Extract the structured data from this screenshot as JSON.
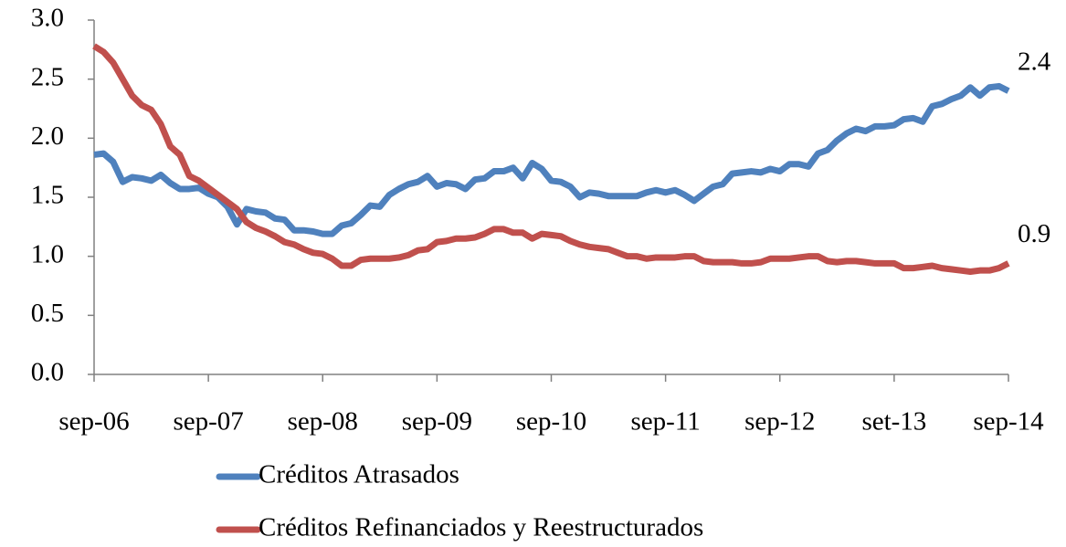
{
  "chart_data": {
    "type": "line",
    "categories": [
      "sep-06",
      null,
      null,
      null,
      null,
      null,
      null,
      null,
      null,
      null,
      null,
      null,
      "sep-07",
      null,
      null,
      null,
      null,
      null,
      null,
      null,
      null,
      null,
      null,
      null,
      "sep-08",
      null,
      null,
      null,
      null,
      null,
      null,
      null,
      null,
      null,
      null,
      null,
      "sep-09",
      null,
      null,
      null,
      null,
      null,
      null,
      null,
      null,
      null,
      null,
      null,
      "sep-10",
      null,
      null,
      null,
      null,
      null,
      null,
      null,
      null,
      null,
      null,
      null,
      "sep-11",
      null,
      null,
      null,
      null,
      null,
      null,
      null,
      null,
      null,
      null,
      null,
      "sep-12",
      null,
      null,
      null,
      null,
      null,
      null,
      null,
      null,
      null,
      null,
      null,
      "set-13",
      null,
      null,
      null,
      null,
      null,
      null,
      null,
      null,
      null,
      null,
      null,
      "sep-14"
    ],
    "series": [
      {
        "name": "Créditos Atrasados",
        "color": "#4f81bd",
        "end_label": "2.4",
        "values": [
          1.86,
          1.87,
          1.8,
          1.63,
          1.67,
          1.66,
          1.64,
          1.69,
          1.62,
          1.57,
          1.57,
          1.58,
          1.53,
          1.5,
          1.42,
          1.27,
          1.4,
          1.38,
          1.37,
          1.32,
          1.31,
          1.22,
          1.22,
          1.21,
          1.19,
          1.19,
          1.26,
          1.28,
          1.35,
          1.43,
          1.42,
          1.52,
          1.57,
          1.61,
          1.63,
          1.68,
          1.59,
          1.62,
          1.61,
          1.57,
          1.65,
          1.66,
          1.72,
          1.72,
          1.75,
          1.66,
          1.79,
          1.74,
          1.64,
          1.63,
          1.59,
          1.5,
          1.54,
          1.53,
          1.51,
          1.51,
          1.51,
          1.51,
          1.54,
          1.56,
          1.54,
          1.56,
          1.52,
          1.47,
          1.53,
          1.59,
          1.61,
          1.7,
          1.71,
          1.72,
          1.71,
          1.74,
          1.72,
          1.78,
          1.78,
          1.76,
          1.87,
          1.9,
          1.98,
          2.04,
          2.08,
          2.06,
          2.1,
          2.1,
          2.11,
          2.16,
          2.17,
          2.14,
          2.27,
          2.29,
          2.33,
          2.36,
          2.43,
          2.36,
          2.43,
          2.44,
          2.4
        ]
      },
      {
        "name": "Créditos Refinanciados y Reestructurados",
        "color": "#c0504d",
        "end_label": "0.9",
        "values": [
          2.78,
          2.73,
          2.64,
          2.5,
          2.36,
          2.28,
          2.24,
          2.12,
          1.93,
          1.86,
          1.68,
          1.64,
          1.58,
          1.52,
          1.46,
          1.4,
          1.29,
          1.24,
          1.21,
          1.17,
          1.12,
          1.1,
          1.06,
          1.03,
          1.02,
          0.98,
          0.92,
          0.92,
          0.97,
          0.98,
          0.98,
          0.98,
          0.99,
          1.01,
          1.05,
          1.06,
          1.12,
          1.13,
          1.15,
          1.15,
          1.16,
          1.19,
          1.23,
          1.23,
          1.2,
          1.2,
          1.15,
          1.19,
          1.18,
          1.17,
          1.13,
          1.1,
          1.08,
          1.07,
          1.06,
          1.03,
          1.0,
          1.0,
          0.98,
          0.99,
          0.99,
          0.99,
          1.0,
          1.0,
          0.96,
          0.95,
          0.95,
          0.95,
          0.94,
          0.94,
          0.95,
          0.98,
          0.98,
          0.98,
          0.99,
          1.0,
          1.0,
          0.96,
          0.95,
          0.96,
          0.96,
          0.95,
          0.94,
          0.94,
          0.94,
          0.9,
          0.9,
          0.91,
          0.92,
          0.9,
          0.89,
          0.88,
          0.87,
          0.88,
          0.88,
          0.9,
          0.94
        ]
      }
    ],
    "ylim": [
      0,
      3
    ],
    "yticks": [
      {
        "value": 0,
        "label": "0.0"
      },
      0.5,
      {
        "value": 1,
        "label": "1.0"
      },
      1.5,
      {
        "value": 2,
        "label": "2.0"
      },
      2.5,
      {
        "value": 3,
        "label": "3.0"
      }
    ],
    "grid": false,
    "legend": "bottom"
  }
}
